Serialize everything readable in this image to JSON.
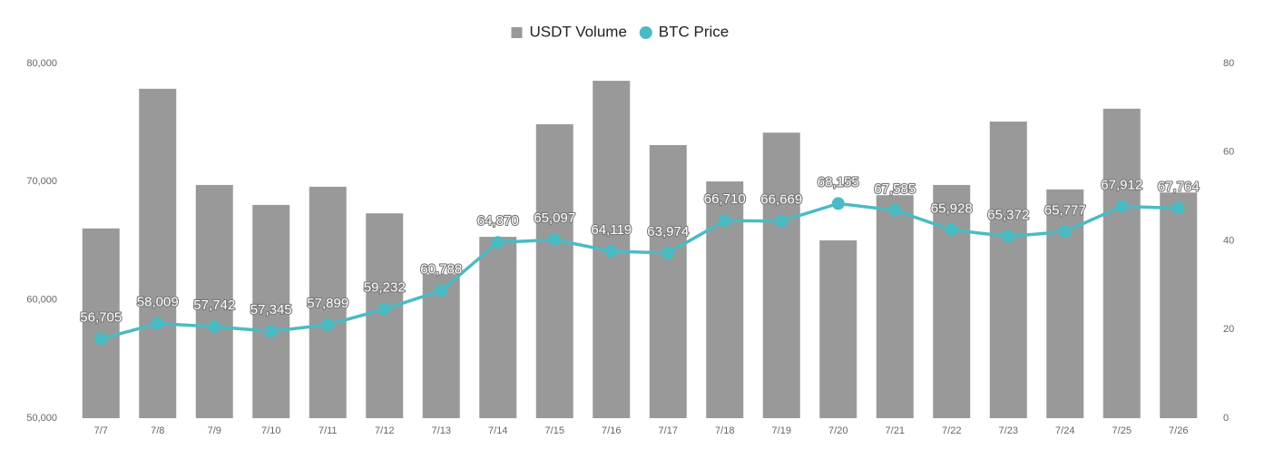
{
  "chart_data": {
    "type": "combo",
    "categories": [
      "7/7",
      "7/8",
      "7/9",
      "7/10",
      "7/11",
      "7/12",
      "7/13",
      "7/14",
      "7/15",
      "7/16",
      "7/17",
      "7/18",
      "7/19",
      "7/20",
      "7/21",
      "7/22",
      "7/23",
      "7/24",
      "7/25",
      "7/26"
    ],
    "series": [
      {
        "name": "USDT Volume",
        "type": "bar",
        "axis": "y2",
        "color": "#999999",
        "values": [
          42.8,
          74.3,
          52.6,
          48.1,
          52.2,
          46.2,
          32.5,
          40.9,
          66.3,
          76.1,
          61.6,
          53.4,
          64.4,
          40.1,
          50.3,
          52.6,
          66.9,
          51.6,
          69.8,
          50.9
        ]
      },
      {
        "name": "BTC Price",
        "type": "line",
        "axis": "y",
        "color": "#4bbbc3",
        "values": [
          56705,
          58009,
          57742,
          57345,
          57899,
          59232,
          60788,
          64870,
          65097,
          64119,
          63974,
          66710,
          66669,
          68155,
          67585,
          65928,
          65372,
          65777,
          67912,
          67764
        ],
        "value_labels": [
          "56,705",
          "58,009",
          "57,742",
          "57,345",
          "57,899",
          "59,232",
          "60,788",
          "64,870",
          "65,097",
          "64,119",
          "63,974",
          "66,710",
          "66,669",
          "68,155",
          "67,585",
          "65,928",
          "65,372",
          "65,777",
          "67,912",
          "67,764"
        ]
      }
    ],
    "ylim": [
      50000,
      80000
    ],
    "yticks": [
      {
        "value": 50000,
        "label": "50,000"
      },
      {
        "value": 60000,
        "label": "60,000"
      },
      {
        "value": 70000,
        "label": "70,000"
      },
      {
        "value": 80000,
        "label": "80,000"
      }
    ],
    "y2lim": [
      0,
      80
    ],
    "y2ticks": [
      0,
      20,
      40,
      60,
      80
    ],
    "legend": "top"
  }
}
